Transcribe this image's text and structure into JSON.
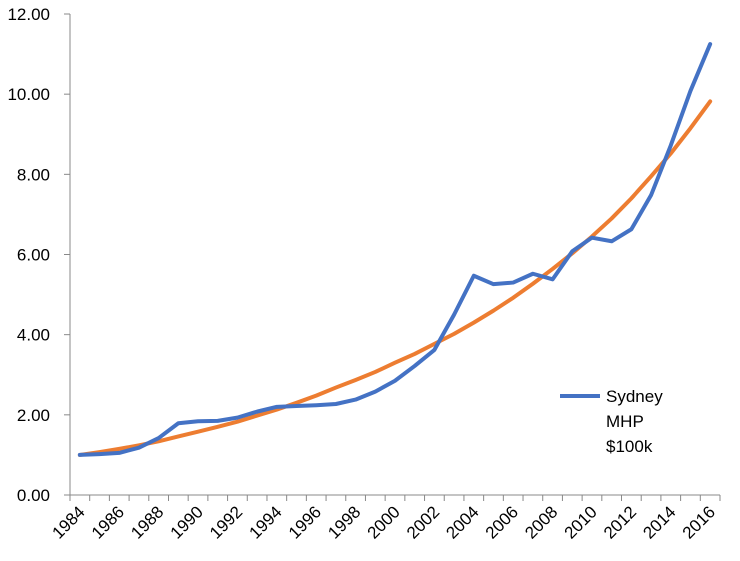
{
  "chart_data": {
    "type": "line",
    "title": "",
    "xlabel": "",
    "ylabel": "",
    "ylim": [
      0,
      12
    ],
    "y_ticks": [
      "0.00",
      "2.00",
      "4.00",
      "6.00",
      "8.00",
      "10.00",
      "12.00"
    ],
    "x_ticks": [
      "1984",
      "1986",
      "1988",
      "1990",
      "1992",
      "1994",
      "1996",
      "1998",
      "2000",
      "2002",
      "2004",
      "2006",
      "2008",
      "2010",
      "2012",
      "2014",
      "2016"
    ],
    "grid": false,
    "legend_position": "right",
    "x": [
      1984,
      1985,
      1986,
      1987,
      1988,
      1989,
      1990,
      1991,
      1992,
      1993,
      1994,
      1995,
      1996,
      1997,
      1998,
      1999,
      2000,
      2001,
      2002,
      2003,
      2004,
      2005,
      2006,
      2007,
      2008,
      2009,
      2010,
      2011,
      2012,
      2013,
      2014,
      2015,
      2016
    ],
    "series": [
      {
        "name": "Sydney MHP $100k",
        "legend_lines": [
          "Sydney",
          "MHP",
          "$100k"
        ],
        "color": "#4472C4",
        "values": [
          1.0,
          1.02,
          1.05,
          1.18,
          1.42,
          1.79,
          1.84,
          1.85,
          1.93,
          2.08,
          2.2,
          2.22,
          2.24,
          2.27,
          2.38,
          2.58,
          2.85,
          3.22,
          3.62,
          4.5,
          5.47,
          5.26,
          5.3,
          5.52,
          5.38,
          6.08,
          6.42,
          6.33,
          6.63,
          7.48,
          8.72,
          10.08,
          11.25
        ]
      },
      {
        "name": "",
        "color": "#ED7D31",
        "values": [
          1.0,
          1.07,
          1.15,
          1.24,
          1.34,
          1.46,
          1.58,
          1.7,
          1.83,
          1.98,
          2.13,
          2.3,
          2.48,
          2.68,
          2.87,
          3.07,
          3.3,
          3.52,
          3.77,
          4.02,
          4.3,
          4.6,
          4.92,
          5.27,
          5.64,
          6.03,
          6.45,
          6.9,
          7.4,
          7.95,
          8.52,
          9.15,
          9.82
        ]
      }
    ]
  }
}
